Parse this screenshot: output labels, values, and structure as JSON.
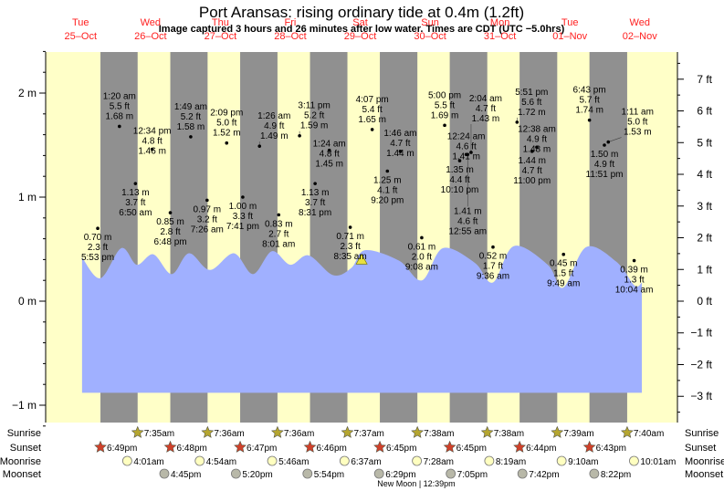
{
  "chart_data": {
    "type": "line",
    "title": "Port Aransas: rising  ordinary tide at 0.4m (1.2ft)",
    "subtitle": "Image captured 3 hours and 26 minutes after low water. Times are CDT (UTC −5.0hrs)",
    "days": [
      {
        "dow": "Tue",
        "date": "25–Oct"
      },
      {
        "dow": "Wed",
        "date": "26–Oct"
      },
      {
        "dow": "Thu",
        "date": "27–Oct"
      },
      {
        "dow": "Fri",
        "date": "28–Oct"
      },
      {
        "dow": "Sat",
        "date": "29–Oct"
      },
      {
        "dow": "Sun",
        "date": "30–Oct"
      },
      {
        "dow": "Mon",
        "date": "31–Oct"
      },
      {
        "dow": "Tue",
        "date": "01–Nov"
      },
      {
        "dow": "Wed",
        "date": "02–Nov"
      }
    ],
    "y_left": {
      "unit": "m",
      "range": [
        -1.0,
        2.5
      ],
      "ticks": [
        {
          "v": 2,
          "label": "2 m"
        },
        {
          "v": 1,
          "label": "1 m"
        },
        {
          "v": 0,
          "label": "0 m"
        },
        {
          "v": -1,
          "label": "−1 m"
        }
      ]
    },
    "y_right": {
      "unit": "ft",
      "ticks": [
        {
          "v": 7,
          "label": "7 ft"
        },
        {
          "v": 6,
          "label": "6 ft"
        },
        {
          "v": 5,
          "label": "5 ft"
        },
        {
          "v": 4,
          "label": "4 ft"
        },
        {
          "v": 3,
          "label": "3 ft"
        },
        {
          "v": 2,
          "label": "2 ft"
        },
        {
          "v": 1,
          "label": "1 ft"
        },
        {
          "v": 0,
          "label": "0 ft"
        },
        {
          "v": -1,
          "label": "−1 ft"
        },
        {
          "v": -2,
          "label": "−2 ft"
        },
        {
          "v": -3,
          "label": "−3 ft"
        }
      ]
    },
    "tide_curve_hours_m": [
      [
        12.5,
        0.42
      ],
      [
        18.8,
        0.22
      ],
      [
        26.0,
        0.51
      ],
      [
        31.3,
        0.35
      ],
      [
        37.0,
        0.45
      ],
      [
        43.3,
        0.26
      ],
      [
        49.2,
        0.46
      ],
      [
        56.4,
        0.3
      ],
      [
        64.6,
        0.46
      ],
      [
        71.2,
        0.26
      ],
      [
        77.7,
        0.48
      ],
      [
        84.0,
        0.35
      ],
      [
        90.3,
        0.44
      ],
      [
        98.7,
        0.25
      ],
      [
        105.0,
        0.32
      ],
      [
        109.7,
        0.49
      ],
      [
        121.3,
        0.39
      ],
      [
        129.2,
        0.2
      ],
      [
        136.4,
        0.51
      ],
      [
        147.3,
        0.37
      ],
      [
        153.6,
        0.18
      ],
      [
        160.8,
        0.53
      ],
      [
        172.4,
        0.35
      ],
      [
        177.7,
        0.13
      ],
      [
        185.6,
        0.52
      ],
      [
        195.9,
        0.38
      ],
      [
        202.2,
        0.15
      ],
      [
        204.7,
        0.18
      ]
    ],
    "curve_floor_m": -0.88,
    "current_marker": {
      "hour": 108.5,
      "m": 0.4
    },
    "extremes": [
      {
        "day": 0,
        "time": "5:53 pm",
        "type": "low",
        "ft": "2.3 ft",
        "m": "0.70 m",
        "v": 0.7
      },
      {
        "day": 1,
        "time": "1:20 am",
        "type": "high",
        "ft": "5.5 ft",
        "m": "1.68 m",
        "v": 1.68
      },
      {
        "day": 1,
        "time": "6:50 am",
        "type": "low",
        "ft": "3.7 ft",
        "m": "1.13 m",
        "v": 1.13
      },
      {
        "day": 1,
        "time": "12:34 pm",
        "type": "high",
        "ft": "4.8 ft",
        "m": "1.46 m",
        "v": 1.46
      },
      {
        "day": 1,
        "time": "6:48 pm",
        "type": "low",
        "ft": "2.8 ft",
        "m": "0.85 m",
        "v": 0.85
      },
      {
        "day": 2,
        "time": "1:49 am",
        "type": "high",
        "ft": "5.2 ft",
        "m": "1.58 m",
        "v": 1.58
      },
      {
        "day": 2,
        "time": "7:26 am",
        "type": "low",
        "ft": "3.2 ft",
        "m": "0.97 m",
        "v": 0.97
      },
      {
        "day": 2,
        "time": "2:09 pm",
        "type": "high",
        "ft": "5.0 ft",
        "m": "1.52 m",
        "v": 1.52
      },
      {
        "day": 2,
        "time": "7:41 pm",
        "type": "low",
        "ft": "3.3 ft",
        "m": "1.00 m",
        "v": 1.0
      },
      {
        "day": 3,
        "time": "1:26 am",
        "type": "high",
        "ft": "4.9 ft",
        "m": "1.49 m",
        "v": 1.49
      },
      {
        "day": 3,
        "time": "8:01 am",
        "type": "low",
        "ft": "2.7 ft",
        "m": "0.83 m",
        "v": 0.83
      },
      {
        "day": 3,
        "time": "3:11 pm",
        "type": "high",
        "ft": "5.2 ft",
        "m": "1.59 m",
        "v": 1.59
      },
      {
        "day": 3,
        "time": "8:31 pm",
        "type": "low",
        "ft": "3.7 ft",
        "m": "1.13 m",
        "v": 1.13
      },
      {
        "day": 4,
        "time": "1:24 am",
        "type": "high",
        "ft": "4.8 ft",
        "m": "1.45 m",
        "v": 1.45
      },
      {
        "day": 4,
        "time": "8:35 am",
        "type": "low",
        "ft": "2.3 ft",
        "m": "0.71 m",
        "v": 0.71
      },
      {
        "day": 4,
        "time": "4:07 pm",
        "type": "high",
        "ft": "5.4 ft",
        "m": "1.65 m",
        "v": 1.65
      },
      {
        "day": 4,
        "time": "9:20 pm",
        "type": "low",
        "ft": "4.1 ft",
        "m": "1.25 m",
        "v": 1.25
      },
      {
        "day": 5,
        "time": "1:46 am",
        "type": "high",
        "ft": "4.7 ft",
        "m": "1.44 m",
        "v": 1.44
      },
      {
        "day": 5,
        "time": "9:08 am",
        "type": "low",
        "ft": "2.0 ft",
        "m": "0.61 m",
        "v": 0.61
      },
      {
        "day": 5,
        "time": "5:00 pm",
        "type": "high",
        "ft": "5.5 ft",
        "m": "1.69 m",
        "v": 1.69
      },
      {
        "day": 5,
        "time": "10:10 pm",
        "type": "low",
        "ft": "4.4 ft",
        "m": "1.35 m",
        "v": 1.35
      },
      {
        "day": 6,
        "time": "12:24 am",
        "type": "high",
        "ft": "4.6 ft",
        "m": "1.41 m",
        "v": 1.41
      },
      {
        "day": 6,
        "time": "12:55 am",
        "type": "low",
        "ft": "4.6 ft",
        "m": "1.41 m",
        "v": 1.41
      },
      {
        "day": 6,
        "time": "2:04 am",
        "type": "high",
        "ft": "4.7 ft",
        "m": "1.43 m",
        "v": 1.43
      },
      {
        "day": 6,
        "time": "9:36 am",
        "type": "low",
        "ft": "1.7 ft",
        "m": "0.52 m",
        "v": 0.52
      },
      {
        "day": 6,
        "time": "5:51 pm",
        "type": "high",
        "ft": "5.6 ft",
        "m": "1.72 m",
        "v": 1.72
      },
      {
        "day": 6,
        "time": "11:00 pm",
        "type": "low",
        "ft": "4.7 ft",
        "m": "1.44 m",
        "v": 1.44
      },
      {
        "day": 7,
        "time": "12:38 am",
        "type": "high",
        "ft": "4.9 ft",
        "m": "1.48 m",
        "v": 1.48
      },
      {
        "day": 7,
        "time": "9:49 am",
        "type": "low",
        "ft": "1.5 ft",
        "m": "0.45 m",
        "v": 0.45
      },
      {
        "day": 7,
        "time": "6:43 pm",
        "type": "high",
        "ft": "5.7 ft",
        "m": "1.74 m",
        "v": 1.74
      },
      {
        "day": 7,
        "time": "11:51 pm",
        "type": "low",
        "ft": "4.9 ft",
        "m": "1.50 m",
        "v": 1.5
      },
      {
        "day": 8,
        "time": "1:11 am",
        "type": "high",
        "ft": "5.0 ft",
        "m": "1.53 m",
        "v": 1.53
      },
      {
        "day": 8,
        "time": "10:04 am",
        "type": "low",
        "ft": "1.3 ft",
        "m": "0.39 m",
        "v": 0.39
      }
    ],
    "rows": [
      {
        "key": "sunrise",
        "label": "Sunrise",
        "icon": "sunrise-star-icon",
        "color": "#b5a630",
        "events": [
          {
            "day": 1,
            "time": "7:35am"
          },
          {
            "day": 2,
            "time": "7:36am"
          },
          {
            "day": 3,
            "time": "7:36am"
          },
          {
            "day": 4,
            "time": "7:37am"
          },
          {
            "day": 5,
            "time": "7:38am"
          },
          {
            "day": 6,
            "time": "7:38am"
          },
          {
            "day": 7,
            "time": "7:39am"
          },
          {
            "day": 8,
            "time": "7:40am"
          }
        ]
      },
      {
        "key": "sunset",
        "label": "Sunset",
        "icon": "sunset-star-icon",
        "color": "#d0402a",
        "events": [
          {
            "day": 0,
            "time": "6:49pm"
          },
          {
            "day": 1,
            "time": "6:48pm"
          },
          {
            "day": 2,
            "time": "6:47pm"
          },
          {
            "day": 3,
            "time": "6:46pm"
          },
          {
            "day": 4,
            "time": "6:45pm"
          },
          {
            "day": 5,
            "time": "6:45pm"
          },
          {
            "day": 6,
            "time": "6:44pm"
          },
          {
            "day": 7,
            "time": "6:43pm"
          }
        ]
      },
      {
        "key": "moonrise",
        "label": "Moonrise",
        "icon": "moonrise-circle-icon",
        "color": "#ffffc0",
        "events": [
          {
            "day": 1,
            "time": "4:01am"
          },
          {
            "day": 2,
            "time": "4:54am"
          },
          {
            "day": 3,
            "time": "5:46am"
          },
          {
            "day": 4,
            "time": "6:37am"
          },
          {
            "day": 5,
            "time": "7:28am"
          },
          {
            "day": 6,
            "time": "8:19am"
          },
          {
            "day": 7,
            "time": "9:10am"
          },
          {
            "day": 8,
            "time": "10:01am"
          }
        ]
      },
      {
        "key": "moonset",
        "label": "Moonset",
        "icon": "moonset-circle-icon",
        "color": "#b8b8a8",
        "events": [
          {
            "day": 1,
            "time": "4:45pm"
          },
          {
            "day": 2,
            "time": "5:20pm"
          },
          {
            "day": 3,
            "time": "5:54pm"
          },
          {
            "day": 4,
            "time": "6:29pm"
          },
          {
            "day": 5,
            "time": "7:05pm"
          },
          {
            "day": 6,
            "time": "7:42pm"
          },
          {
            "day": 7,
            "time": "8:22pm"
          }
        ]
      }
    ],
    "moon_phase": "New Moon | 12:39pm",
    "colors": {
      "day": "#ffffc8",
      "night": "#909090",
      "water": "#a0b0ff",
      "day_label": "#ff2020",
      "marker": "#e8e040"
    }
  }
}
